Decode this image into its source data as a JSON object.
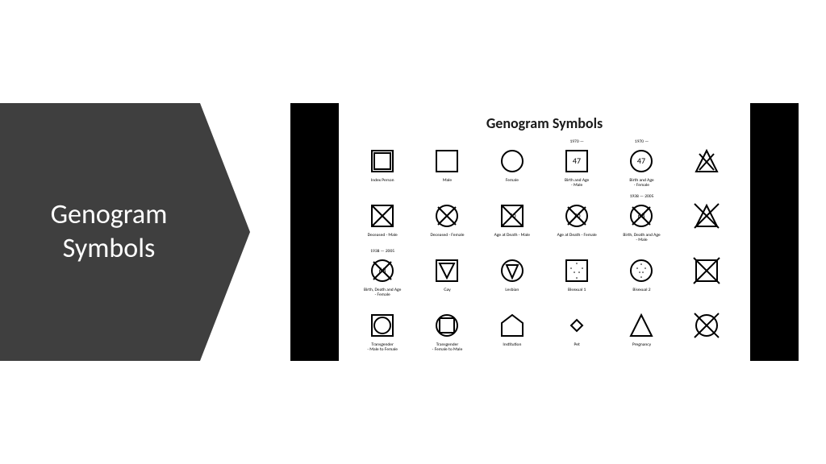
{
  "left_arrow": {
    "text": "Genogram\nSymbols",
    "bg_color": "#3f3f3f",
    "text_color": "#ffffff",
    "font_size": 34
  },
  "sheet": {
    "title": "Genogram Symbols",
    "title_fontsize": 18,
    "background_color": "#ffffff",
    "letterbox_color": "#000000",
    "grid": {
      "cols": 6,
      "rows": 4
    },
    "cells": [
      {
        "type": "double-square",
        "label": "Index Person",
        "year": ""
      },
      {
        "type": "square",
        "label": "Male",
        "year": ""
      },
      {
        "type": "circle",
        "label": "Female",
        "year": ""
      },
      {
        "type": "square-text",
        "text": "47",
        "label": "Birth and Age\n- Male",
        "year": "1970 —"
      },
      {
        "type": "circle-text",
        "text": "47",
        "label": "Birth and Age\n- Female",
        "year": "1970 —"
      },
      {
        "type": "triangle-x",
        "label": "",
        "year": ""
      },
      {
        "type": "square-x",
        "label": "Deceased - Male",
        "year": ""
      },
      {
        "type": "circle-x",
        "label": "Deceased - Female",
        "year": ""
      },
      {
        "type": "square-x-text",
        "text": "70",
        "label": "Age at Death - Male",
        "year": ""
      },
      {
        "type": "circle-x-text",
        "text": "70",
        "label": "Age at Death - Female",
        "year": ""
      },
      {
        "type": "circle-x-text",
        "text": "68",
        "label": "Birth, Death and Age\n- Male",
        "year": "1938 — 2005"
      },
      {
        "type": "triangle-x-ext",
        "label": "",
        "year": ""
      },
      {
        "type": "circle-x-text",
        "text": "68",
        "label": "Birth, Death and Age\n- Female",
        "year": "1938 — 2005"
      },
      {
        "type": "square-tri-down",
        "label": "Gay",
        "year": ""
      },
      {
        "type": "circle-tri-down",
        "label": "Lesbian",
        "year": ""
      },
      {
        "type": "square-dots",
        "label": "Bisexual 1",
        "year": ""
      },
      {
        "type": "circle-dots",
        "label": "Bisexual 2",
        "year": ""
      },
      {
        "type": "square-x-ext",
        "label": "",
        "year": ""
      },
      {
        "type": "square-circle",
        "label": "Transgender\n- Male to Female",
        "year": ""
      },
      {
        "type": "circle-square",
        "label": "Transgender\n- Female to Male",
        "year": ""
      },
      {
        "type": "pentagon",
        "label": "Institution",
        "year": ""
      },
      {
        "type": "diamond-small",
        "label": "Pet",
        "year": ""
      },
      {
        "type": "triangle",
        "label": "Pregnancy",
        "year": ""
      },
      {
        "type": "circle-x-ext",
        "label": "",
        "year": ""
      }
    ]
  }
}
